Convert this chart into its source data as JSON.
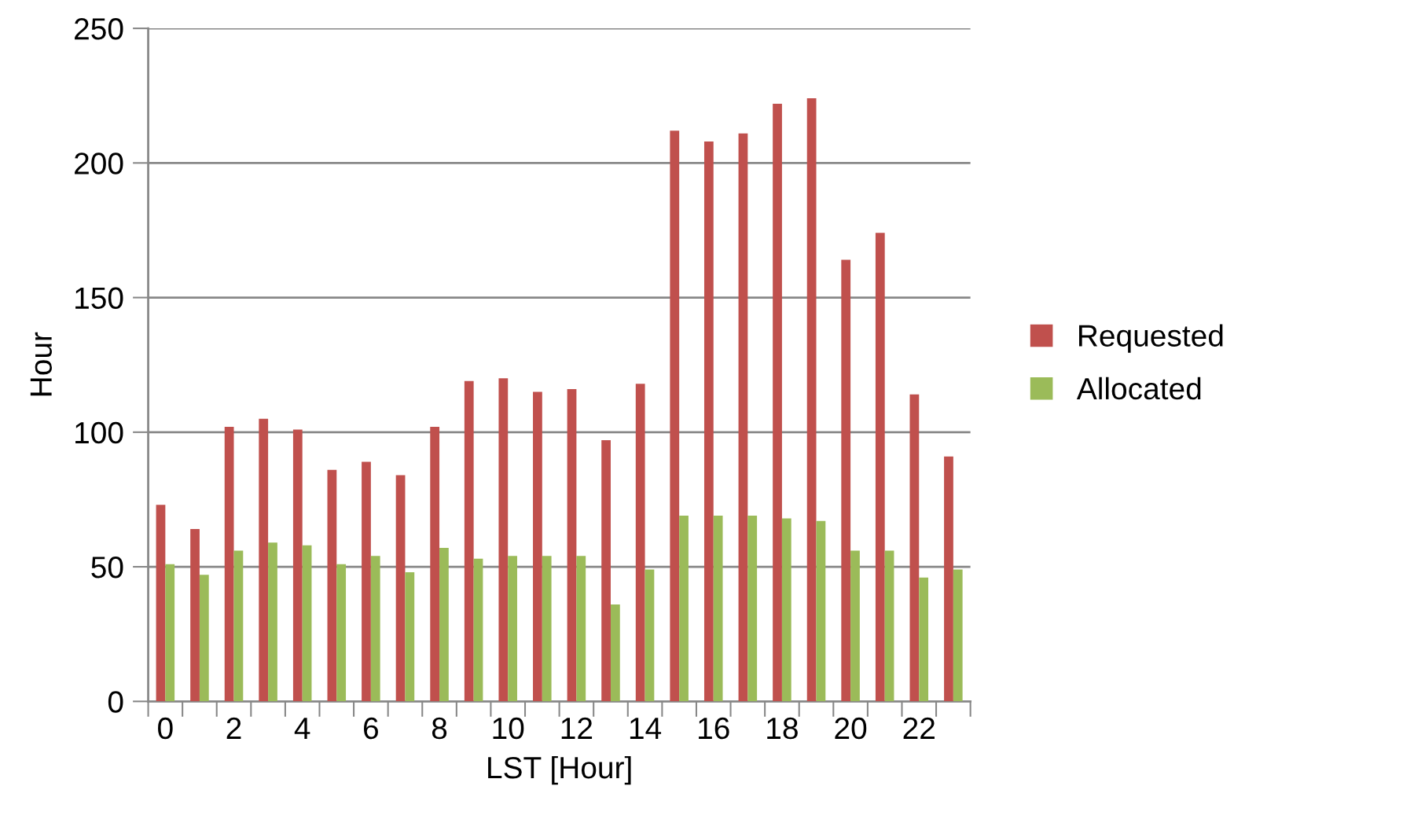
{
  "chart_data": {
    "type": "bar",
    "xlabel": "LST [Hour]",
    "ylabel": "Hour",
    "categories": [
      "0",
      null,
      "2",
      null,
      "4",
      null,
      "6",
      null,
      "8",
      null,
      "10",
      null,
      "12",
      null,
      "14",
      null,
      "16",
      null,
      "18",
      null,
      "20",
      null,
      "22",
      null
    ],
    "series": [
      {
        "name": "Requested",
        "color": "#c0504d",
        "values": [
          73,
          64,
          102,
          105,
          101,
          86,
          89,
          84,
          102,
          119,
          120,
          115,
          116,
          97,
          118,
          212,
          208,
          211,
          222,
          224,
          164,
          174,
          114,
          91
        ]
      },
      {
        "name": "Allocated",
        "color": "#9bbb59",
        "values": [
          51,
          47,
          56,
          59,
          58,
          51,
          54,
          48,
          57,
          53,
          54,
          54,
          54,
          36,
          49,
          69,
          69,
          69,
          68,
          67,
          56,
          56,
          46,
          49
        ]
      }
    ],
    "ylim": [
      0,
      250
    ],
    "yticks": [
      0,
      50,
      100,
      150,
      200,
      250
    ],
    "grid": "y",
    "legend": "right"
  }
}
